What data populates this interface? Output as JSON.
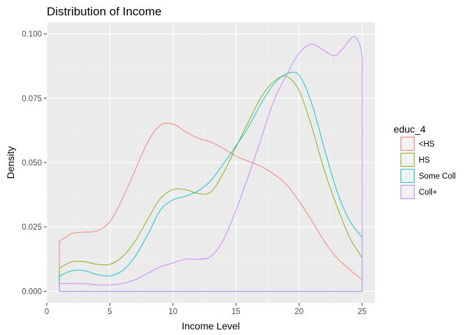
{
  "chart_data": {
    "type": "line",
    "title": "Distribution of Income",
    "xlabel": "Income Level",
    "ylabel": "Density",
    "xlim": [
      0,
      26
    ],
    "ylim": [
      -0.0045,
      0.1045
    ],
    "x_ticks": [
      0,
      5,
      10,
      15,
      20,
      25
    ],
    "x_tick_labels": [
      "0",
      "5",
      "10",
      "15",
      "20",
      "25"
    ],
    "y_ticks": [
      0,
      0.025,
      0.05,
      0.075,
      0.1
    ],
    "y_tick_labels": [
      "0.000",
      "0.025",
      "0.050",
      "0.075",
      "0.100"
    ],
    "grid": true,
    "background": "#ebebeb",
    "legend": {
      "title": "educ_4",
      "position": "right",
      "entries": [
        "<HS",
        "HS",
        "Some Coll",
        "Coll+"
      ]
    },
    "series": [
      {
        "name": "<HS",
        "color": "#f8766d",
        "points": [
          [
            1,
            0
          ],
          [
            1,
            0.0195
          ],
          [
            1.5,
            0.021
          ],
          [
            2,
            0.0225
          ],
          [
            3,
            0.023
          ],
          [
            4,
            0.0235
          ],
          [
            5,
            0.027
          ],
          [
            6,
            0.036
          ],
          [
            7,
            0.047
          ],
          [
            8,
            0.058
          ],
          [
            9,
            0.0645
          ],
          [
            10,
            0.065
          ],
          [
            11,
            0.062
          ],
          [
            12,
            0.0595
          ],
          [
            13,
            0.058
          ],
          [
            14,
            0.0555
          ],
          [
            15,
            0.0525
          ],
          [
            16,
            0.0505
          ],
          [
            17,
            0.0485
          ],
          [
            18,
            0.0455
          ],
          [
            19,
            0.0415
          ],
          [
            20,
            0.035
          ],
          [
            21,
            0.0275
          ],
          [
            22,
            0.0195
          ],
          [
            23,
            0.013
          ],
          [
            24,
            0.0085
          ],
          [
            25,
            0.0045
          ],
          [
            25,
            0
          ],
          [
            1,
            0
          ]
        ]
      },
      {
        "name": "HS",
        "color": "#7cae00",
        "points": [
          [
            1,
            0
          ],
          [
            1,
            0.009
          ],
          [
            2,
            0.0115
          ],
          [
            3,
            0.0115
          ],
          [
            4,
            0.0105
          ],
          [
            5,
            0.0105
          ],
          [
            6,
            0.0135
          ],
          [
            7,
            0.0195
          ],
          [
            8,
            0.028
          ],
          [
            9,
            0.036
          ],
          [
            10,
            0.0395
          ],
          [
            11,
            0.0395
          ],
          [
            12,
            0.038
          ],
          [
            13,
            0.0385
          ],
          [
            14,
            0.046
          ],
          [
            15,
            0.056
          ],
          [
            16,
            0.066
          ],
          [
            17,
            0.0755
          ],
          [
            18,
            0.0815
          ],
          [
            19,
            0.0835
          ],
          [
            20,
            0.078
          ],
          [
            21,
            0.064
          ],
          [
            22,
            0.047
          ],
          [
            23,
            0.033
          ],
          [
            24,
            0.021
          ],
          [
            25,
            0.013
          ],
          [
            25,
            0
          ],
          [
            1,
            0
          ]
        ]
      },
      {
        "name": "Some Coll",
        "color": "#00bfc4",
        "points": [
          [
            1,
            0
          ],
          [
            1,
            0.006
          ],
          [
            2,
            0.008
          ],
          [
            3,
            0.008
          ],
          [
            4,
            0.0065
          ],
          [
            5,
            0.006
          ],
          [
            6,
            0.008
          ],
          [
            7,
            0.0135
          ],
          [
            8,
            0.022
          ],
          [
            9,
            0.0315
          ],
          [
            10,
            0.0355
          ],
          [
            11,
            0.037
          ],
          [
            12,
            0.039
          ],
          [
            13,
            0.043
          ],
          [
            14,
            0.0495
          ],
          [
            15,
            0.0565
          ],
          [
            16,
            0.064
          ],
          [
            17,
            0.073
          ],
          [
            18,
            0.0805
          ],
          [
            19,
            0.0845
          ],
          [
            20,
            0.084
          ],
          [
            21,
            0.073
          ],
          [
            22,
            0.0555
          ],
          [
            23,
            0.039
          ],
          [
            24,
            0.0275
          ],
          [
            25,
            0.021
          ],
          [
            25,
            0
          ],
          [
            1,
            0
          ]
        ]
      },
      {
        "name": "Coll+",
        "color": "#c77cff",
        "points": [
          [
            1,
            0
          ],
          [
            1,
            0.003
          ],
          [
            2,
            0.003
          ],
          [
            3,
            0.003
          ],
          [
            4,
            0.0025
          ],
          [
            5,
            0.0025
          ],
          [
            6,
            0.003
          ],
          [
            7,
            0.0045
          ],
          [
            8,
            0.007
          ],
          [
            9,
            0.0095
          ],
          [
            10,
            0.011
          ],
          [
            11,
            0.0125
          ],
          [
            12,
            0.0125
          ],
          [
            13,
            0.0135
          ],
          [
            14,
            0.02
          ],
          [
            15,
            0.0315
          ],
          [
            16,
            0.045
          ],
          [
            17,
            0.0595
          ],
          [
            18,
            0.074
          ],
          [
            19,
            0.084
          ],
          [
            20,
            0.0925
          ],
          [
            21,
            0.096
          ],
          [
            22,
            0.0935
          ],
          [
            22.8,
            0.0915
          ],
          [
            23.5,
            0.0945
          ],
          [
            24.3,
            0.099
          ],
          [
            24.8,
            0.096
          ],
          [
            25,
            0.091
          ],
          [
            25,
            0
          ],
          [
            1,
            0
          ]
        ]
      }
    ]
  }
}
